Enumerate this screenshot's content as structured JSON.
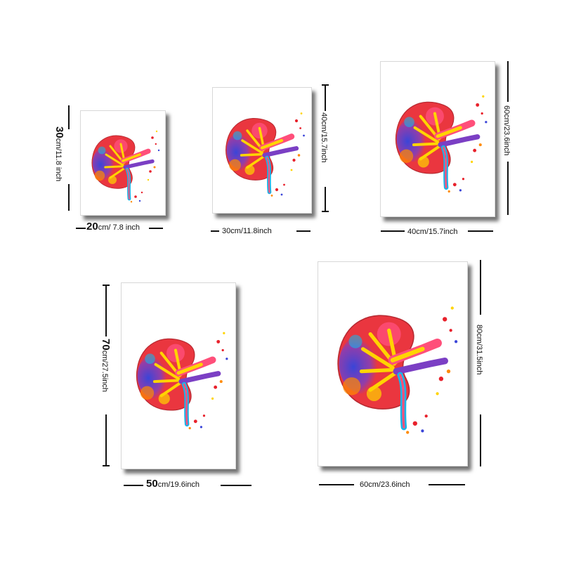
{
  "artwork": {
    "subject": "watercolor kidney anatomy print",
    "palette": [
      "#e8212b",
      "#ff4f7a",
      "#3a45d8",
      "#7b3fc4",
      "#ffd400",
      "#ff8a00",
      "#19b4e8",
      "#2bb24c"
    ]
  },
  "posters": [
    {
      "id": "p1",
      "width": {
        "main": "20",
        "unit": "cm/ 7.8 inch"
      },
      "height": {
        "main": "30",
        "unit": "cm/11.8 inch"
      }
    },
    {
      "id": "p2",
      "width": {
        "main": "",
        "unit": "30cm/11.8inch"
      },
      "height": {
        "main": "",
        "unit": "40cm/15.7inch"
      }
    },
    {
      "id": "p3",
      "width": {
        "main": "",
        "unit": "40cm/15.7inch"
      },
      "height": {
        "main": "",
        "unit": "60cm/23.6inch"
      }
    },
    {
      "id": "p4",
      "width": {
        "main": "50",
        "unit": "cm/19.6inch"
      },
      "height": {
        "main": "70",
        "unit": "cm/27.5inch"
      }
    },
    {
      "id": "p5",
      "width": {
        "main": "",
        "unit": "60cm/23.6inch"
      },
      "height": {
        "main": "",
        "unit": "80cm/31.5inch"
      }
    }
  ]
}
